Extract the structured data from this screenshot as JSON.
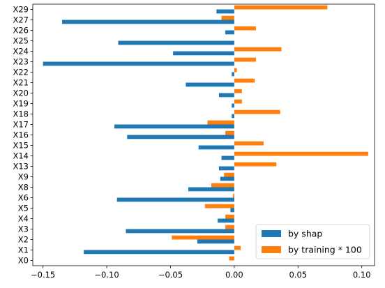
{
  "chart_data": {
    "type": "bar",
    "orientation": "horizontal",
    "title": "",
    "xlabel": "",
    "ylabel": "",
    "categories": [
      "X0",
      "X1",
      "X2",
      "X3",
      "X4",
      "X5",
      "X6",
      "X8",
      "X9",
      "X13",
      "X14",
      "X15",
      "X16",
      "X17",
      "X18",
      "X19",
      "X20",
      "X21",
      "X22",
      "X23",
      "X24",
      "X25",
      "X26",
      "X27",
      "X29"
    ],
    "series": [
      {
        "name": "by shap",
        "color": "#1f77b4",
        "values": [
          0.0,
          -0.118,
          -0.029,
          -0.085,
          -0.013,
          -0.003,
          -0.092,
          -0.036,
          -0.011,
          -0.012,
          -0.01,
          -0.028,
          -0.084,
          -0.094,
          -0.002,
          -0.002,
          -0.012,
          -0.038,
          -0.002,
          -0.15,
          -0.048,
          -0.091,
          -0.007,
          -0.135,
          -0.014
        ]
      },
      {
        "name": "by training * 100",
        "color": "#ff7f0e",
        "values": [
          -0.004,
          0.005,
          -0.049,
          -0.007,
          -0.007,
          -0.023,
          -0.001,
          -0.018,
          -0.008,
          0.033,
          0.105,
          0.023,
          -0.007,
          -0.021,
          0.036,
          0.006,
          0.006,
          0.016,
          0.002,
          0.017,
          0.037,
          0.0,
          0.017,
          -0.01,
          0.073
        ]
      }
    ],
    "xlim": [
      -0.158,
      0.11
    ],
    "xticks": [
      -0.15,
      -0.1,
      -0.05,
      0.0,
      0.05,
      0.1
    ],
    "xtick_labels": [
      "−0.15",
      "−0.10",
      "−0.05",
      "0.00",
      "0.05",
      "0.10"
    ],
    "grid": false,
    "legend_position": "lower-right"
  }
}
